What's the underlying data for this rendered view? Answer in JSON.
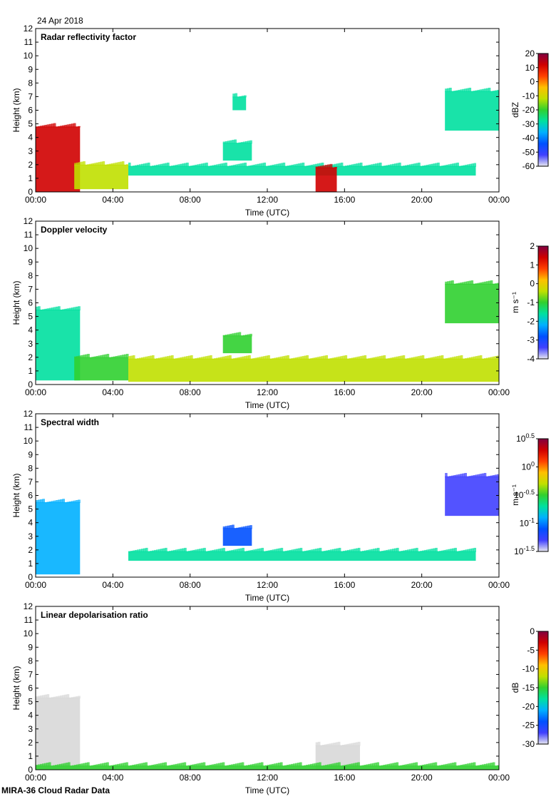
{
  "date_label": "24 Apr 2018",
  "footer_label": "MIRA-36 Cloud Radar Data",
  "chart_data": [
    {
      "type": "heatmap",
      "title": "Radar reflectivity factor",
      "xlabel": "Time (UTC)",
      "ylabel": "Height (km)",
      "xticks": [
        "00:00",
        "04:00",
        "08:00",
        "12:00",
        "16:00",
        "20:00",
        "00:00"
      ],
      "xlim_hours": [
        0,
        24
      ],
      "ylim_km": [
        0,
        12
      ],
      "yticks": [
        0,
        1,
        2,
        3,
        4,
        5,
        6,
        7,
        8,
        9,
        10,
        11,
        12
      ],
      "colorbar": {
        "unit_label": "dBZ",
        "ticks": [
          "20",
          "10",
          "0",
          "-10",
          "-20",
          "-30",
          "-40",
          "-50",
          "-60"
        ],
        "range": [
          -60,
          20
        ],
        "colors": [
          "#e8e8f0",
          "#4040ff",
          "#0050ff",
          "#00b0ff",
          "#00e0a0",
          "#30d030",
          "#c0e000",
          "#ffc000",
          "#ff4000",
          "#d00000",
          "#800040"
        ]
      },
      "features": [
        {
          "t0": 0.0,
          "t1": 2.3,
          "z0": 0.0,
          "z1": 4.8,
          "value": 8
        },
        {
          "t0": 2.0,
          "t1": 4.8,
          "z0": 0.2,
          "z1": 2.0,
          "value": -12
        },
        {
          "t0": 4.8,
          "t1": 22.8,
          "z0": 1.2,
          "z1": 1.9,
          "value": -30
        },
        {
          "t0": 9.7,
          "t1": 11.2,
          "z0": 2.3,
          "z1": 3.6,
          "value": -25
        },
        {
          "t0": 10.2,
          "t1": 10.9,
          "z0": 6.0,
          "z1": 7.0,
          "value": -28
        },
        {
          "t0": 14.5,
          "t1": 15.6,
          "z0": 0.0,
          "z1": 1.8,
          "value": 10
        },
        {
          "t0": 21.2,
          "t1": 24.0,
          "z0": 4.5,
          "z1": 7.4,
          "value": -25
        }
      ]
    },
    {
      "type": "heatmap",
      "title": "Doppler velocity",
      "xlabel": "Time (UTC)",
      "ylabel": "Height (km)",
      "xticks": [
        "00:00",
        "04:00",
        "08:00",
        "12:00",
        "16:00",
        "20:00",
        "00:00"
      ],
      "xlim_hours": [
        0,
        24
      ],
      "ylim_km": [
        0,
        12
      ],
      "yticks": [
        0,
        1,
        2,
        3,
        4,
        5,
        6,
        7,
        8,
        9,
        10,
        11,
        12
      ],
      "colorbar": {
        "unit_label": "m s⁻¹",
        "ticks": [
          "2",
          "1",
          "0",
          "-1",
          "-2",
          "-3",
          "-4"
        ],
        "range": [
          -4,
          2
        ],
        "colors": [
          "#e8e8f0",
          "#4040ff",
          "#0050ff",
          "#00b0ff",
          "#00e0a0",
          "#30d030",
          "#c0e000",
          "#ffc000",
          "#ff4000",
          "#d00000",
          "#800040"
        ]
      },
      "features": [
        {
          "t0": 0.0,
          "t1": 2.3,
          "z0": 0.3,
          "z1": 5.5,
          "value": -1.5
        },
        {
          "t0": 2.0,
          "t1": 4.8,
          "z0": 0.3,
          "z1": 2.0,
          "value": -1.0
        },
        {
          "t0": 4.8,
          "t1": 24.0,
          "z0": 0.2,
          "z1": 1.9,
          "value": -0.5
        },
        {
          "t0": 9.7,
          "t1": 11.2,
          "z0": 2.3,
          "z1": 3.6,
          "value": -0.8
        },
        {
          "t0": 21.2,
          "t1": 24.0,
          "z0": 4.5,
          "z1": 7.4,
          "value": -0.7
        }
      ]
    },
    {
      "type": "heatmap",
      "title": "Spectral width",
      "xlabel": "Time (UTC)",
      "ylabel": "Height (km)",
      "xticks": [
        "00:00",
        "04:00",
        "08:00",
        "12:00",
        "16:00",
        "20:00",
        "00:00"
      ],
      "xlim_hours": [
        0,
        24
      ],
      "ylim_km": [
        0,
        12
      ],
      "yticks": [
        0,
        1,
        2,
        3,
        4,
        5,
        6,
        7,
        8,
        9,
        10,
        11,
        12
      ],
      "colorbar": {
        "unit_label": "m s⁻¹",
        "ticks": [
          "10^0.5",
          "10^0",
          "10^-0.5",
          "10^-1",
          "10^-1.5"
        ],
        "tick_base": [
          "10",
          "10",
          "10",
          "10",
          "10"
        ],
        "tick_exp": [
          "0.5",
          "0",
          "-0.5",
          "-1",
          "-1.5"
        ],
        "range": [
          -1.5,
          0.5
        ],
        "colors": [
          "#e8e8f0",
          "#4040ff",
          "#0050ff",
          "#00b0ff",
          "#00e0a0",
          "#30d030",
          "#c0e000",
          "#ffc000",
          "#ff4000",
          "#d00000",
          "#800040"
        ]
      },
      "features": [
        {
          "t0": 0.0,
          "t1": 2.3,
          "z0": 0.2,
          "z1": 5.5,
          "value": -1.0
        },
        {
          "t0": 4.8,
          "t1": 22.8,
          "z0": 1.2,
          "z1": 1.9,
          "value": -0.7
        },
        {
          "t0": 9.7,
          "t1": 11.2,
          "z0": 2.3,
          "z1": 3.6,
          "value": -1.1
        },
        {
          "t0": 21.2,
          "t1": 24.0,
          "z0": 4.5,
          "z1": 7.4,
          "value": -1.3
        }
      ]
    },
    {
      "type": "heatmap",
      "title": "Linear depolarisation ratio",
      "xlabel": "Time (UTC)",
      "ylabel": "Height (km)",
      "xticks": [
        "00:00",
        "04:00",
        "08:00",
        "12:00",
        "16:00",
        "20:00",
        "00:00"
      ],
      "xlim_hours": [
        0,
        24
      ],
      "ylim_km": [
        0,
        12
      ],
      "yticks": [
        0,
        1,
        2,
        3,
        4,
        5,
        6,
        7,
        8,
        9,
        10,
        11,
        12
      ],
      "colorbar": {
        "unit_label": "dB",
        "ticks": [
          "0",
          "-5",
          "-10",
          "-15",
          "-20",
          "-25",
          "-30"
        ],
        "range": [
          -30,
          0
        ],
        "colors": [
          "#e8e8f0",
          "#4040ff",
          "#0050ff",
          "#00b0ff",
          "#00e0a0",
          "#30d030",
          "#c0e000",
          "#ffc000",
          "#ff4000",
          "#d00000",
          "#800040"
        ]
      },
      "features": [
        {
          "t0": 0.0,
          "t1": 2.3,
          "z0": 0.0,
          "z1": 5.3,
          "value": "nodata-gray"
        },
        {
          "t0": 14.5,
          "t1": 16.8,
          "z0": 0.0,
          "z1": 1.8,
          "value": "nodata-gray"
        },
        {
          "t0": 0.0,
          "t1": 24.0,
          "z0": 0.0,
          "z1": 0.3,
          "value": -15
        }
      ]
    }
  ]
}
